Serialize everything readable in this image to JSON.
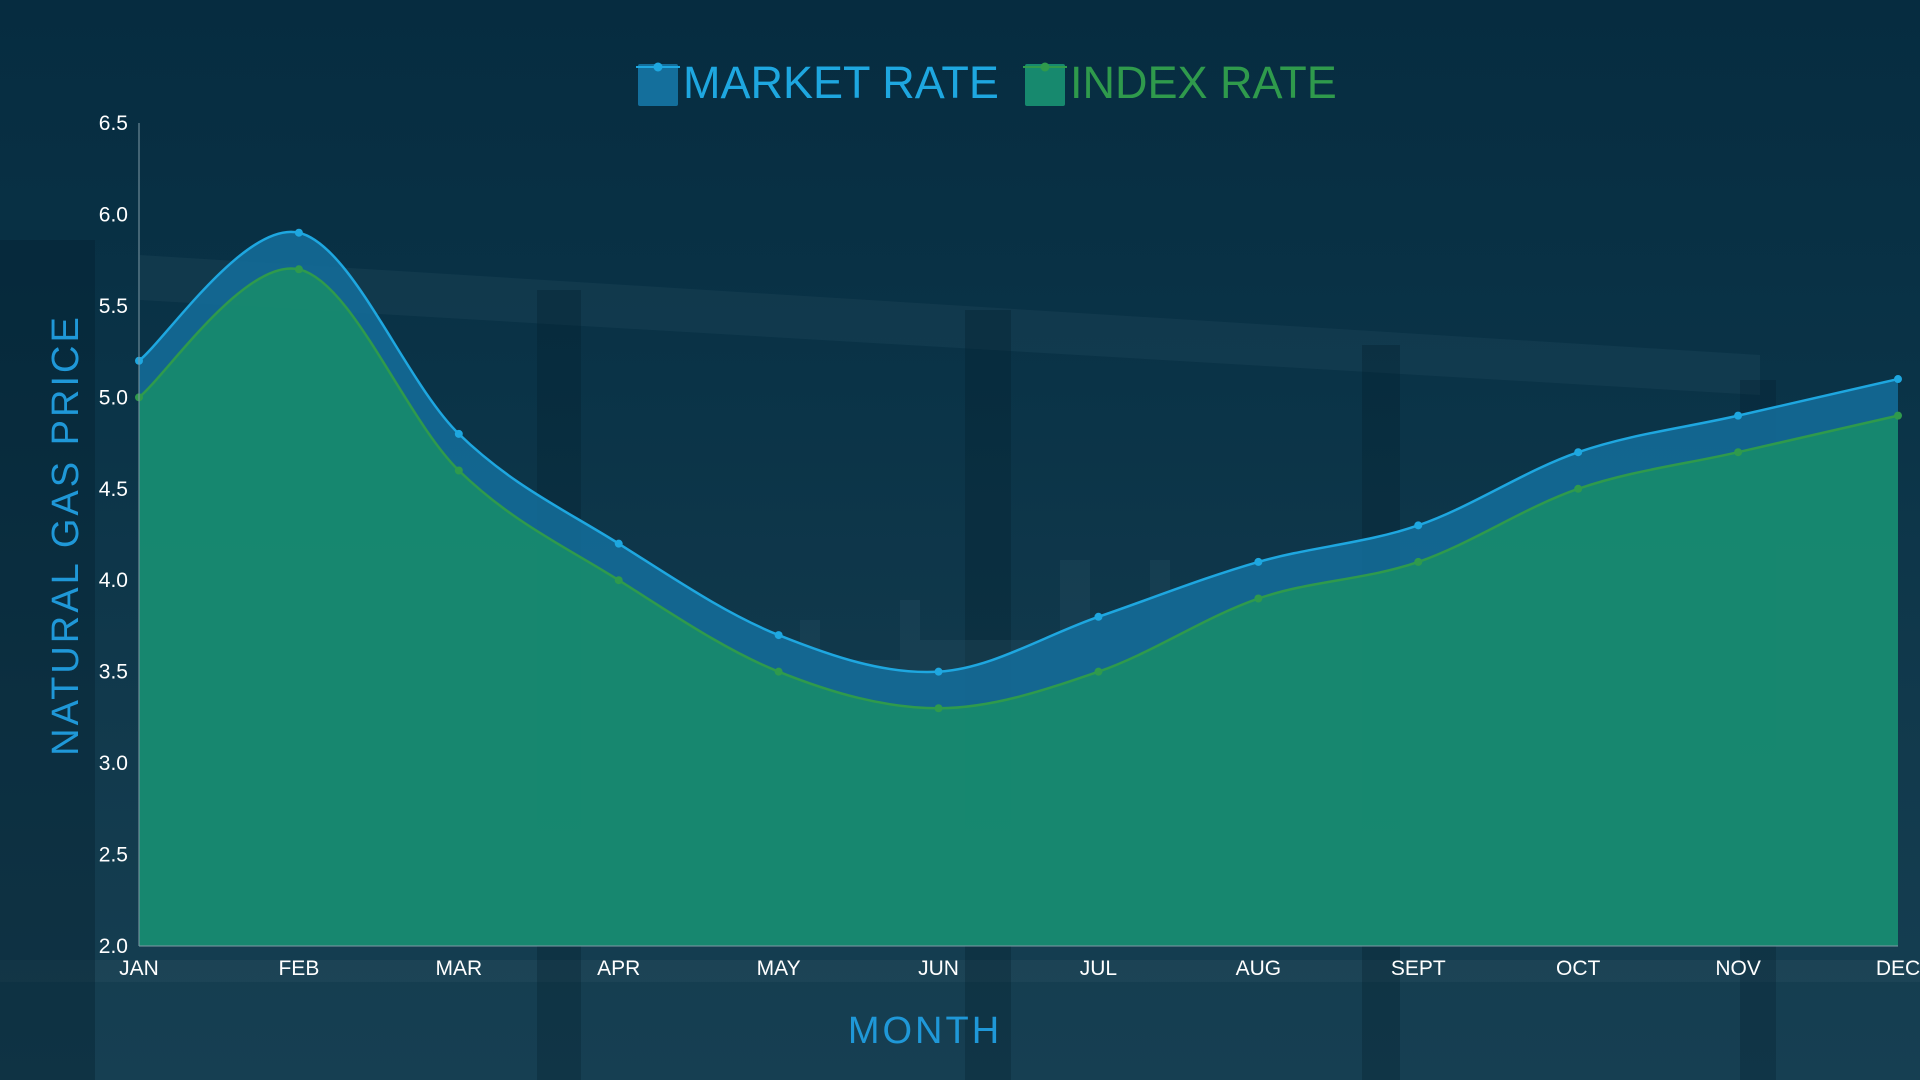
{
  "colors": {
    "market": "#1ea7e0",
    "market_fill": "#146f9c",
    "index": "#2f9a4c",
    "index_fill": "#17896e",
    "axis_title": "#1f98d8",
    "tick_text": "#ffffff"
  },
  "chart_data": {
    "type": "area",
    "title": "",
    "xlabel": "MONTH",
    "ylabel": "NATURAL GAS PRICE",
    "categories": [
      "JAN",
      "FEB",
      "MAR",
      "APR",
      "MAY",
      "JUN",
      "JUL",
      "AUG",
      "SEPT",
      "OCT",
      "NOV",
      "DEC"
    ],
    "series": [
      {
        "name": "MARKET RATE",
        "values": [
          5.2,
          5.9,
          4.8,
          4.2,
          3.7,
          3.5,
          3.8,
          4.1,
          4.3,
          4.7,
          4.9,
          5.1
        ]
      },
      {
        "name": "INDEX RATE",
        "values": [
          5.0,
          5.7,
          4.6,
          4.0,
          3.5,
          3.3,
          3.5,
          3.9,
          4.1,
          4.5,
          4.7,
          4.9
        ]
      }
    ],
    "ylim": [
      2.0,
      6.5
    ],
    "yticks": [
      "2.0",
      "2.5",
      "3.0",
      "3.5",
      "4.0",
      "4.5",
      "5.0",
      "5.5",
      "6.0",
      "6.5"
    ],
    "grid": false,
    "smooth": true,
    "legend_position": "top-center"
  }
}
